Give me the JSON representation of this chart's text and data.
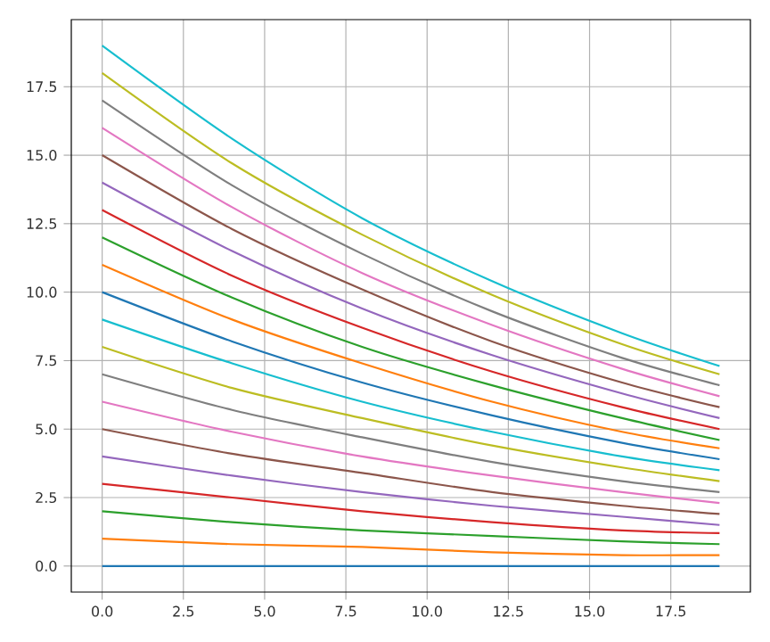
{
  "chart_data": {
    "type": "line",
    "x": [
      0,
      4,
      8,
      12,
      16,
      19
    ],
    "xlim": [
      -0.95,
      19.95
    ],
    "ylim": [
      -0.95,
      19.95
    ],
    "xticks": [
      {
        "value": 0,
        "label": "0.0"
      },
      {
        "value": 2.5,
        "label": "2.5"
      },
      {
        "value": 5,
        "label": "5.0"
      },
      {
        "value": 7.5,
        "label": "7.5"
      },
      {
        "value": 10,
        "label": "10.0"
      },
      {
        "value": 12.5,
        "label": "12.5"
      },
      {
        "value": 15,
        "label": "15.0"
      },
      {
        "value": 17.5,
        "label": "17.5"
      }
    ],
    "yticks": [
      {
        "value": 0,
        "label": "0.0"
      },
      {
        "value": 2.5,
        "label": "2.5"
      },
      {
        "value": 5,
        "label": "5.0"
      },
      {
        "value": 7.5,
        "label": "7.5"
      },
      {
        "value": 10,
        "label": "10.0"
      },
      {
        "value": 12.5,
        "label": "12.5"
      },
      {
        "value": 15,
        "label": "15.0"
      },
      {
        "value": 17.5,
        "label": "17.5"
      }
    ],
    "grid": true,
    "series": [
      {
        "color": "#1f77b4",
        "values": [
          0,
          0,
          0,
          0,
          0,
          0
        ]
      },
      {
        "color": "#ff7f0e",
        "values": [
          1,
          0.8,
          0.7,
          0.5,
          0.4,
          0.4
        ]
      },
      {
        "color": "#2ca02c",
        "values": [
          2,
          1.6,
          1.3,
          1.1,
          0.9,
          0.8
        ]
      },
      {
        "color": "#d62728",
        "values": [
          3,
          2.5,
          2.0,
          1.6,
          1.3,
          1.2
        ]
      },
      {
        "color": "#9467bd",
        "values": [
          4,
          3.3,
          2.7,
          2.2,
          1.8,
          1.5
        ]
      },
      {
        "color": "#8c564b",
        "values": [
          5,
          4.1,
          3.4,
          2.7,
          2.2,
          1.9
        ]
      },
      {
        "color": "#e377c2",
        "values": [
          6,
          4.9,
          4.0,
          3.3,
          2.7,
          2.3
        ]
      },
      {
        "color": "#7f7f7f",
        "values": [
          7,
          5.7,
          4.7,
          3.8,
          3.1,
          2.7
        ]
      },
      {
        "color": "#bcbd22",
        "values": [
          8,
          6.5,
          5.4,
          4.4,
          3.6,
          3.1
        ]
      },
      {
        "color": "#17becf",
        "values": [
          9,
          7.4,
          6.0,
          4.9,
          4.0,
          3.5
        ]
      },
      {
        "color": "#1f77b4",
        "values": [
          10,
          8.2,
          6.7,
          5.5,
          4.5,
          3.9
        ]
      },
      {
        "color": "#ff7f0e",
        "values": [
          11,
          9.0,
          7.4,
          6.0,
          4.9,
          4.3
        ]
      },
      {
        "color": "#2ca02c",
        "values": [
          12,
          9.8,
          8.0,
          6.6,
          5.4,
          4.6
        ]
      },
      {
        "color": "#d62728",
        "values": [
          13,
          10.6,
          8.7,
          7.1,
          5.8,
          5.0
        ]
      },
      {
        "color": "#9467bd",
        "values": [
          14,
          11.5,
          9.4,
          7.7,
          6.3,
          5.4
        ]
      },
      {
        "color": "#8c564b",
        "values": [
          15,
          12.3,
          10.1,
          8.2,
          6.7,
          5.8
        ]
      },
      {
        "color": "#e377c2",
        "values": [
          16,
          13.1,
          10.7,
          8.8,
          7.2,
          6.2
        ]
      },
      {
        "color": "#7f7f7f",
        "values": [
          17,
          13.9,
          11.4,
          9.3,
          7.6,
          6.6
        ]
      },
      {
        "color": "#bcbd22",
        "values": [
          18,
          14.7,
          12.1,
          9.9,
          8.1,
          7.0
        ]
      },
      {
        "color": "#17becf",
        "values": [
          19,
          15.6,
          12.7,
          10.4,
          8.5,
          7.3
        ]
      }
    ]
  }
}
